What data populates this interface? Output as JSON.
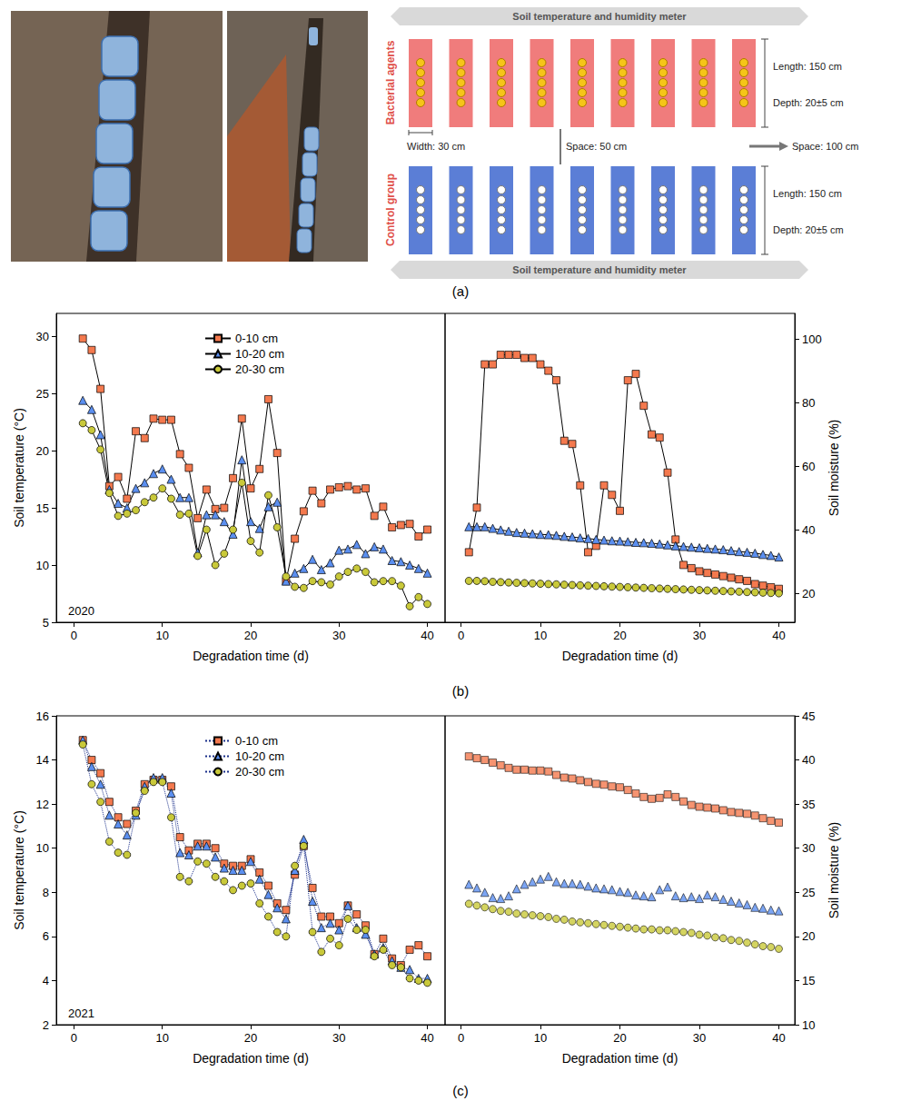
{
  "panel_a": {
    "label": "(a)",
    "meter": "Soil temperature and humidity meter",
    "groups": [
      {
        "label": "Bacterial agents",
        "color": "#F07C7C",
        "length": "Length: 150 cm",
        "depth": "Depth: 20±5 cm"
      },
      {
        "label": "Control group",
        "color": "#5B7ED6",
        "length": "Length: 150 cm",
        "depth": "Depth: 20±5 cm"
      }
    ],
    "width": "Width: 30 cm",
    "space_plots": "Space: 50 cm",
    "space_groups": "Space: 100 cm",
    "plots_per_group": 9,
    "bags_per_plot": 5
  },
  "chart_data": [
    {
      "panel": "(b)",
      "type": "line",
      "annotation": "2020",
      "x_label": "Degradation time (d)",
      "y_label": "Soil temperature (°C)",
      "x": [
        1,
        2,
        3,
        4,
        5,
        6,
        7,
        8,
        9,
        10,
        11,
        12,
        13,
        14,
        15,
        16,
        17,
        18,
        19,
        20,
        21,
        22,
        23,
        24,
        25,
        26,
        27,
        28,
        29,
        30,
        31,
        32,
        33,
        34,
        35,
        36,
        37,
        38,
        39,
        40
      ],
      "xlim": [
        -2,
        42
      ],
      "xticks": [
        0,
        10,
        20,
        30,
        40
      ],
      "ylim": [
        5,
        32
      ],
      "yticks": [
        5,
        10,
        15,
        20,
        25,
        30
      ],
      "grid": false,
      "legend": "upper center",
      "series": [
        {
          "name": "0-10 cm",
          "color": "#F4794E",
          "marker": "square",
          "line_style": "solid",
          "values": [
            29.8,
            28.8,
            25.4,
            16.9,
            17.7,
            15.8,
            21.7,
            21.1,
            22.8,
            22.7,
            22.7,
            19.7,
            18.5,
            14.1,
            16.6,
            14.9,
            15.0,
            17.6,
            22.8,
            16.7,
            18.4,
            24.5,
            19.8,
            8.6,
            12.3,
            14.7,
            16.5,
            15.4,
            16.6,
            16.8,
            16.9,
            16.6,
            16.7,
            14.3,
            15.1,
            13.3,
            13.5,
            13.6,
            12.5,
            13.1
          ]
        },
        {
          "name": "10-20 cm",
          "color": "#5B8FF0",
          "marker": "triangle",
          "line_style": "solid",
          "values": [
            24.4,
            23.6,
            21.4,
            16.6,
            15.4,
            15.0,
            16.7,
            17.2,
            18.0,
            18.4,
            17.5,
            15.9,
            15.9,
            11.1,
            14.4,
            14.4,
            13.8,
            12.7,
            19.2,
            13.8,
            13.2,
            15.1,
            15.5,
            8.6,
            9.3,
            9.7,
            10.5,
            9.6,
            10.2,
            11.3,
            11.4,
            11.8,
            11.0,
            11.6,
            11.4,
            10.4,
            10.3,
            10.0,
            9.7,
            9.3
          ]
        },
        {
          "name": "20-30 cm",
          "color": "#C9C93A",
          "marker": "circle",
          "line_style": "solid",
          "values": [
            22.4,
            21.8,
            20.1,
            16.3,
            14.3,
            14.5,
            14.8,
            15.5,
            15.9,
            16.7,
            15.8,
            14.4,
            14.5,
            10.8,
            13.1,
            10.0,
            11.0,
            13.1,
            17.2,
            12.1,
            11.1,
            16.1,
            13.3,
            9.0,
            8.1,
            8.0,
            8.6,
            8.5,
            8.3,
            9.0,
            9.4,
            9.7,
            9.4,
            8.5,
            8.6,
            8.6,
            8.2,
            6.4,
            7.2,
            6.6
          ]
        }
      ]
    },
    {
      "panel": "(b)",
      "type": "line",
      "x_label": "Degradation time (d)",
      "y_label": "Soil moisture (%)",
      "x": [
        1,
        2,
        3,
        4,
        5,
        6,
        7,
        8,
        9,
        10,
        11,
        12,
        13,
        14,
        15,
        16,
        17,
        18,
        19,
        20,
        21,
        22,
        23,
        24,
        25,
        26,
        27,
        28,
        29,
        30,
        31,
        32,
        33,
        34,
        35,
        36,
        37,
        38,
        39,
        40
      ],
      "xlim": [
        -2,
        42
      ],
      "xticks": [
        0,
        10,
        20,
        30,
        40
      ],
      "ylim": [
        11,
        108
      ],
      "yticks": [
        20,
        40,
        60,
        80,
        100
      ],
      "grid": false,
      "series": [
        {
          "name": "0-10 cm",
          "color": "#F4794E",
          "marker": "square",
          "line_style": "solid",
          "values": [
            33,
            47,
            92,
            92,
            95,
            95,
            95,
            94,
            94,
            92,
            90,
            87,
            68,
            67,
            54,
            33,
            35,
            54,
            51,
            46,
            87,
            89,
            79,
            70,
            69,
            58,
            37,
            29,
            28,
            27,
            26.5,
            26,
            25.5,
            25,
            24.5,
            24,
            23,
            22.5,
            22,
            21.5
          ]
        },
        {
          "name": "10-20 cm",
          "color": "#5B8FF0",
          "marker": "triangle",
          "line_style": "solid",
          "values": [
            41,
            41,
            41,
            40.5,
            40,
            39.6,
            39.2,
            39,
            38.8,
            38.6,
            38.5,
            38.3,
            38,
            37.8,
            37.5,
            37.3,
            37,
            36.8,
            36.6,
            36.5,
            36.3,
            36.1,
            36,
            35.8,
            35.6,
            35.3,
            35,
            34.8,
            34.6,
            34.4,
            34.2,
            34,
            33.8,
            33.5,
            33.2,
            33,
            32.7,
            32.3,
            32,
            31.5
          ]
        },
        {
          "name": "20-30 cm",
          "color": "#C9C93A",
          "marker": "circle",
          "line_style": "solid",
          "values": [
            24,
            24,
            23.9,
            23.7,
            23.6,
            23.5,
            23.4,
            23.3,
            23.2,
            23.1,
            23,
            22.9,
            22.8,
            22.7,
            22.6,
            22.5,
            22.4,
            22.3,
            22.2,
            22.1,
            22,
            21.9,
            21.8,
            21.7,
            21.6,
            21.5,
            21.4,
            21.3,
            21.2,
            21.1,
            21,
            20.9,
            20.8,
            20.7,
            20.6,
            20.5,
            20.4,
            20.3,
            20.2,
            20.1
          ]
        }
      ]
    },
    {
      "panel": "(c)",
      "type": "line",
      "annotation": "2021",
      "x_label": "Degradation time (d)",
      "y_label": "Soil temperature (°C)",
      "x": [
        1,
        2,
        3,
        4,
        5,
        6,
        7,
        8,
        9,
        10,
        11,
        12,
        13,
        14,
        15,
        16,
        17,
        18,
        19,
        20,
        21,
        22,
        23,
        24,
        25,
        26,
        27,
        28,
        29,
        30,
        31,
        32,
        33,
        34,
        35,
        36,
        37,
        38,
        39,
        40
      ],
      "xlim": [
        -2,
        42
      ],
      "xticks": [
        0,
        10,
        20,
        30,
        40
      ],
      "ylim": [
        2,
        16
      ],
      "yticks": [
        2,
        4,
        6,
        8,
        10,
        12,
        14,
        16
      ],
      "grid": false,
      "legend": "upper center",
      "series": [
        {
          "name": "0-10 cm",
          "color": "#F4794E",
          "marker": "square",
          "line_style": "dotted",
          "values": [
            14.9,
            14.0,
            13.4,
            12.1,
            11.4,
            11.1,
            11.7,
            12.9,
            13.1,
            13.1,
            12.8,
            10.5,
            9.9,
            10.2,
            10.2,
            10.0,
            9.3,
            9.2,
            9.2,
            9.5,
            8.9,
            8.3,
            7.5,
            7.2,
            8.8,
            10.1,
            8.2,
            6.9,
            6.9,
            6.6,
            7.4,
            7.0,
            6.5,
            5.2,
            5.9,
            5.0,
            4.7,
            5.4,
            5.6,
            5.1
          ]
        },
        {
          "name": "10-20 cm",
          "color": "#5B8FF0",
          "marker": "triangle",
          "line_style": "dotted",
          "values": [
            14.9,
            13.7,
            12.9,
            11.5,
            11.1,
            10.6,
            11.5,
            12.8,
            13.2,
            13.2,
            12.5,
            9.8,
            9.7,
            10.1,
            10.1,
            9.6,
            9.1,
            9.0,
            9.0,
            9.4,
            8.6,
            7.9,
            7.3,
            6.8,
            9.0,
            10.4,
            7.6,
            6.4,
            6.6,
            6.3,
            7.4,
            6.4,
            6.1,
            5.2,
            5.5,
            4.9,
            4.6,
            4.5,
            4.1,
            4.1
          ]
        },
        {
          "name": "20-30 cm",
          "color": "#C9C93A",
          "marker": "circle",
          "line_style": "dotted",
          "values": [
            14.7,
            12.9,
            12.1,
            10.3,
            9.8,
            9.7,
            11.6,
            12.6,
            13.0,
            13.0,
            11.4,
            8.7,
            8.5,
            9.4,
            9.3,
            8.7,
            8.5,
            8.1,
            8.3,
            8.4,
            7.5,
            6.9,
            6.2,
            6.0,
            9.2,
            10.1,
            6.2,
            5.3,
            5.9,
            5.6,
            6.8,
            6.3,
            6.3,
            5.1,
            5.4,
            4.7,
            4.6,
            4.1,
            4.0,
            3.9
          ]
        }
      ]
    },
    {
      "panel": "(c)",
      "type": "scatter",
      "x_label": "Degradation time (d)",
      "y_label": "Soil moisture (%)",
      "x": [
        1,
        2,
        3,
        4,
        5,
        6,
        7,
        8,
        9,
        10,
        11,
        12,
        13,
        14,
        15,
        16,
        17,
        18,
        19,
        20,
        21,
        22,
        23,
        24,
        25,
        26,
        27,
        28,
        29,
        30,
        31,
        32,
        33,
        34,
        35,
        36,
        37,
        38,
        39,
        40
      ],
      "xlim": [
        -2,
        42
      ],
      "xticks": [
        0,
        10,
        20,
        30,
        40
      ],
      "ylim": [
        10,
        45
      ],
      "yticks": [
        10,
        15,
        20,
        25,
        30,
        35,
        40,
        45
      ],
      "grid": false,
      "series": [
        {
          "name": "0-10 cm",
          "color": "#F4794E",
          "marker": "square",
          "values": [
            40.4,
            40.2,
            40.0,
            39.7,
            39.4,
            39.1,
            38.9,
            38.9,
            38.8,
            38.8,
            38.7,
            38.3,
            38.0,
            37.9,
            37.7,
            37.5,
            37.3,
            37.2,
            37.0,
            36.9,
            36.6,
            36.2,
            35.8,
            35.6,
            35.7,
            36.1,
            35.8,
            35.3,
            34.9,
            34.7,
            34.6,
            34.5,
            34.3,
            34.1,
            34.0,
            33.9,
            33.7,
            33.4,
            33.1,
            32.9
          ]
        },
        {
          "name": "10-20 cm",
          "color": "#5B8FF0",
          "marker": "triangle",
          "values": [
            25.9,
            25.5,
            25.0,
            24.4,
            24.3,
            24.6,
            25.4,
            25.9,
            26.2,
            26.5,
            26.8,
            26.2,
            26.0,
            26.0,
            25.9,
            25.7,
            25.5,
            25.4,
            25.3,
            25.1,
            25.0,
            24.7,
            24.6,
            24.5,
            25.3,
            25.6,
            24.6,
            24.4,
            24.5,
            24.3,
            24.7,
            24.5,
            24.2,
            24.0,
            23.8,
            23.6,
            23.3,
            23.2,
            23.0,
            22.9
          ]
        },
        {
          "name": "20-30 cm",
          "color": "#C9C93A",
          "marker": "circle",
          "values": [
            23.7,
            23.5,
            23.3,
            23.1,
            22.9,
            22.8,
            22.6,
            22.5,
            22.4,
            22.3,
            22.2,
            22.0,
            21.9,
            21.7,
            21.6,
            21.5,
            21.4,
            21.3,
            21.2,
            21.1,
            21.0,
            20.9,
            20.8,
            20.8,
            20.7,
            20.7,
            20.6,
            20.5,
            20.4,
            20.2,
            20.1,
            19.9,
            19.8,
            19.6,
            19.5,
            19.3,
            19.1,
            18.9,
            18.8,
            18.6
          ]
        }
      ]
    }
  ]
}
